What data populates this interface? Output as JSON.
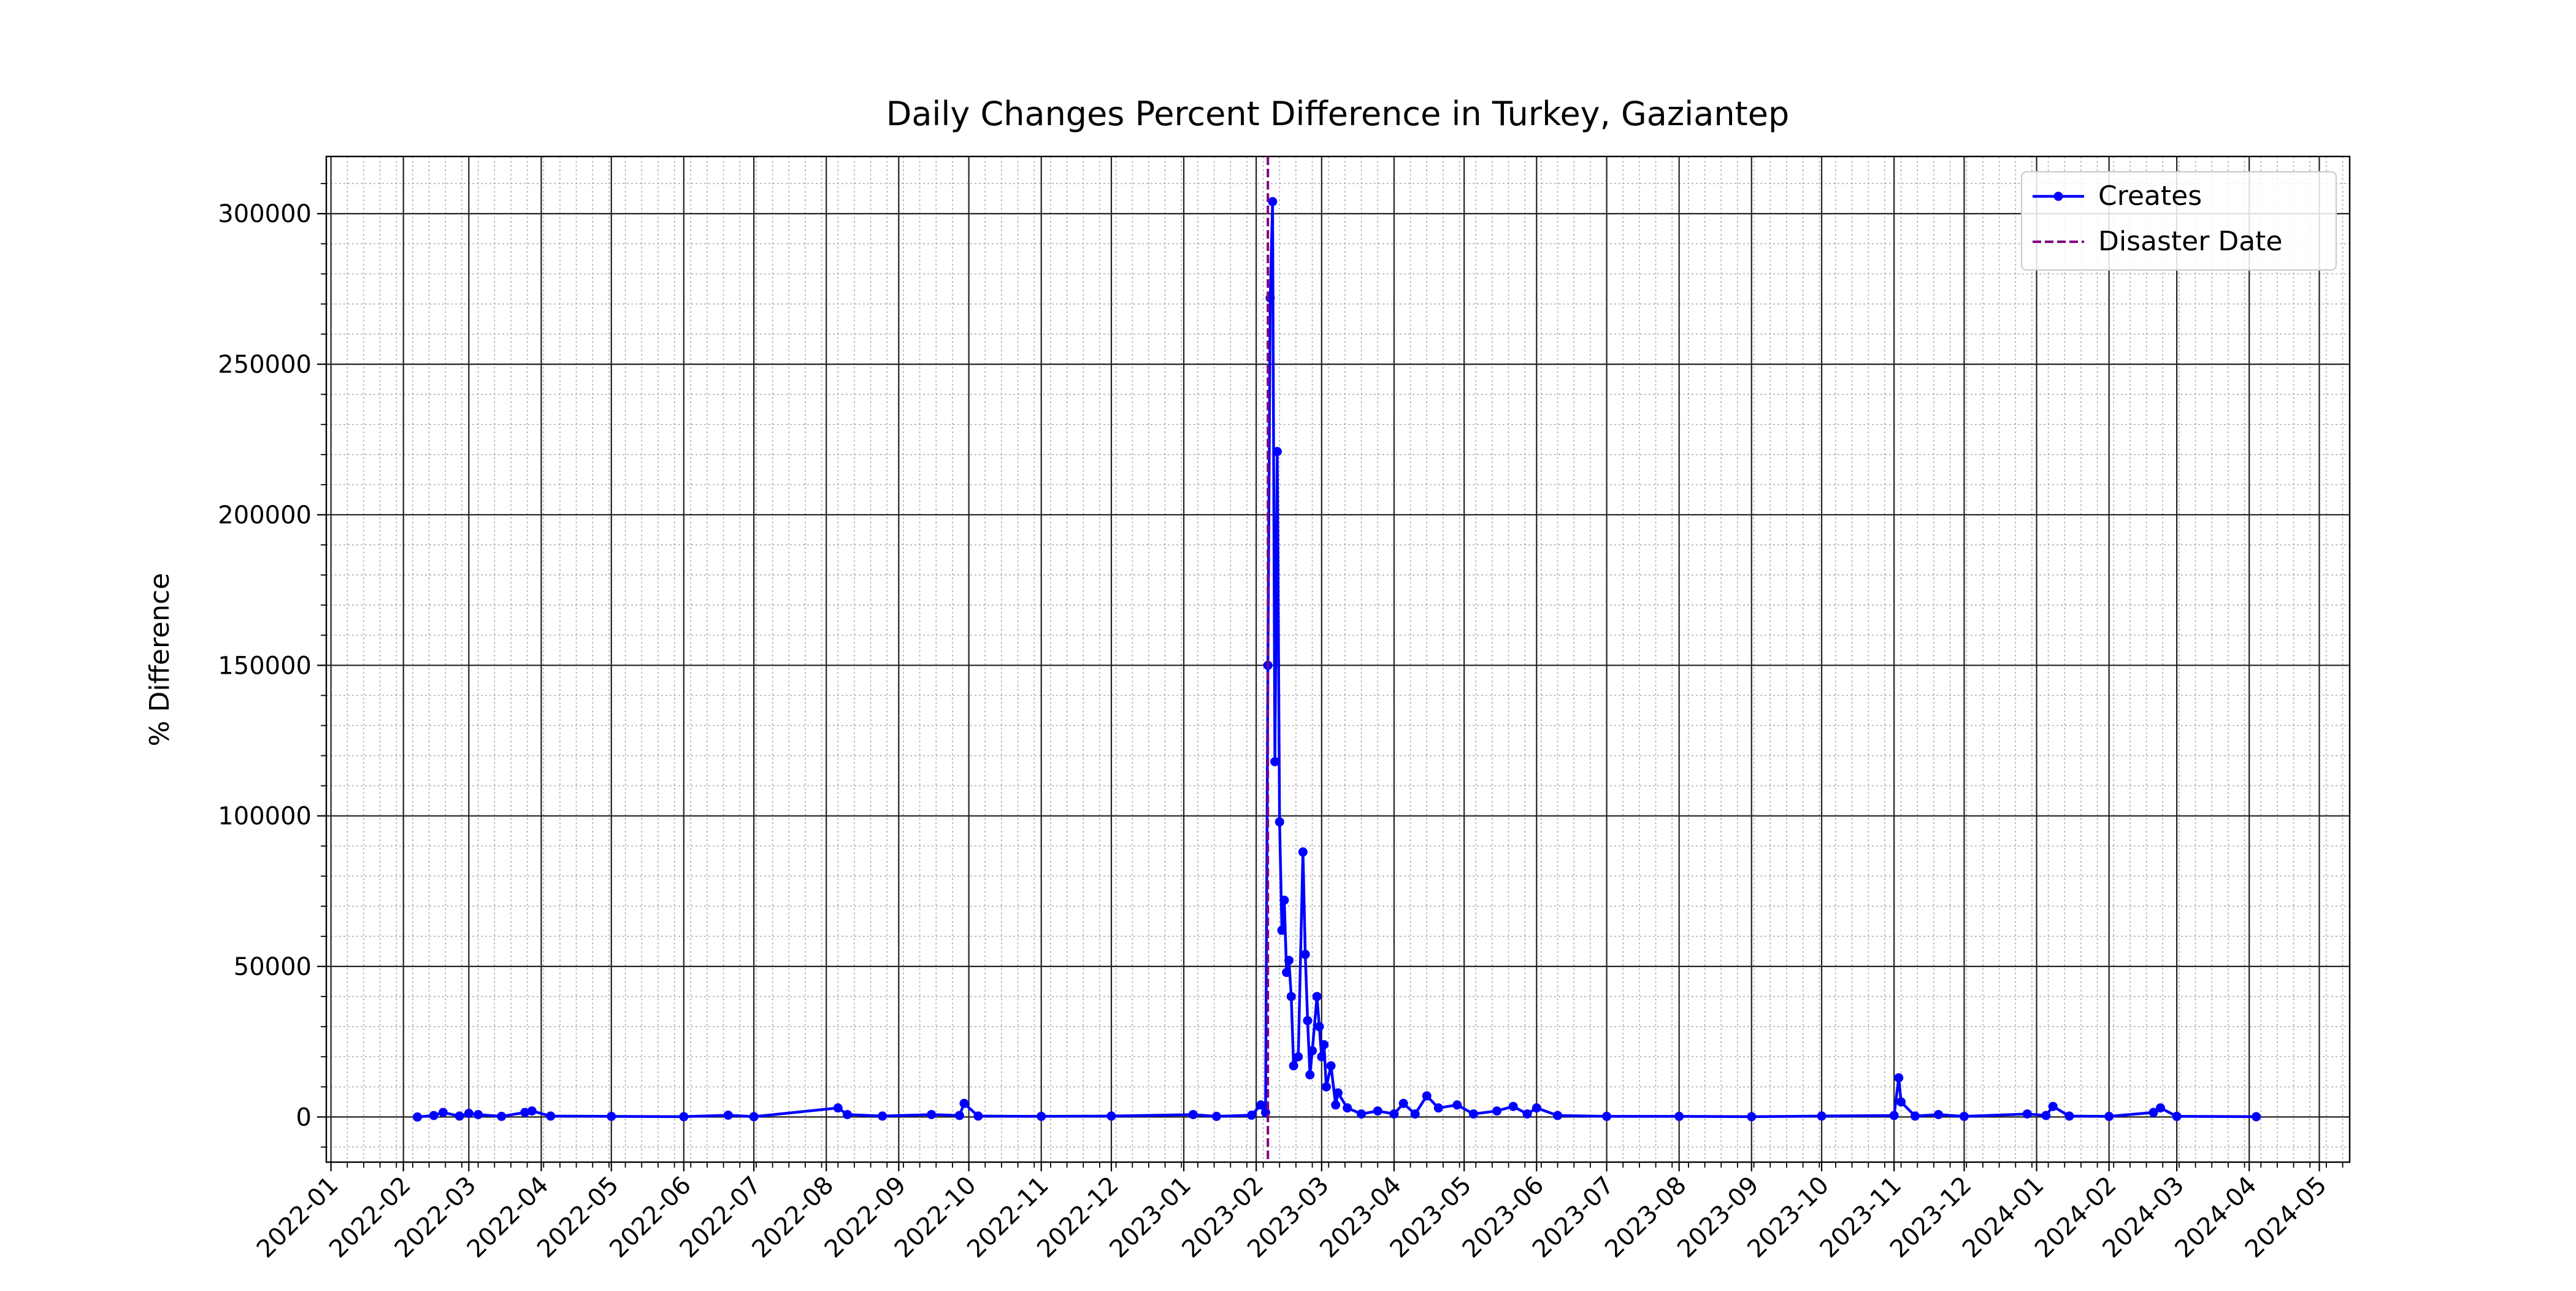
{
  "chart_data": {
    "type": "line",
    "title": "Daily Changes Percent Difference in Turkey, Gaziantep",
    "y_label": "% Difference",
    "x": [
      "2022-02-07",
      "2022-02-14",
      "2022-02-18",
      "2022-02-25",
      "2022-03-01",
      "2022-03-05",
      "2022-03-15",
      "2022-03-25",
      "2022-03-28",
      "2022-04-05",
      "2022-05-01",
      "2022-06-01",
      "2022-06-20",
      "2022-07-01",
      "2022-08-06",
      "2022-08-10",
      "2022-08-25",
      "2022-09-15",
      "2022-09-27",
      "2022-09-29",
      "2022-10-05",
      "2022-11-01",
      "2022-12-01",
      "2023-01-05",
      "2023-01-15",
      "2023-01-30",
      "2023-02-03",
      "2023-02-05",
      "2023-02-06",
      "2023-02-07",
      "2023-02-08",
      "2023-02-09",
      "2023-02-10",
      "2023-02-11",
      "2023-02-12",
      "2023-02-13",
      "2023-02-14",
      "2023-02-15",
      "2023-02-16",
      "2023-02-17",
      "2023-02-19",
      "2023-02-21",
      "2023-02-22",
      "2023-02-23",
      "2023-02-24",
      "2023-02-25",
      "2023-02-27",
      "2023-02-28",
      "2023-03-01",
      "2023-03-02",
      "2023-03-03",
      "2023-03-05",
      "2023-03-07",
      "2023-03-08",
      "2023-03-12",
      "2023-03-18",
      "2023-03-25",
      "2023-04-01",
      "2023-04-05",
      "2023-04-10",
      "2023-04-15",
      "2023-04-20",
      "2023-04-28",
      "2023-05-05",
      "2023-05-15",
      "2023-05-22",
      "2023-05-28",
      "2023-06-01",
      "2023-06-10",
      "2023-07-01",
      "2023-08-01",
      "2023-09-01",
      "2023-10-01",
      "2023-11-01",
      "2023-11-03",
      "2023-11-04",
      "2023-11-10",
      "2023-11-20",
      "2023-12-01",
      "2023-12-28",
      "2024-01-05",
      "2024-01-08",
      "2024-01-15",
      "2024-02-01",
      "2024-02-20",
      "2024-02-23",
      "2024-03-01",
      "2024-04-04"
    ],
    "series": [
      {
        "name": "Creates",
        "color": "#0000ff",
        "values": [
          0,
          500,
          1500,
          300,
          1200,
          800,
          200,
          1500,
          2000,
          300,
          200,
          100,
          600,
          100,
          3000,
          800,
          300,
          800,
          500,
          4500,
          300,
          200,
          300,
          800,
          200,
          600,
          4000,
          1500,
          150000,
          272000,
          304000,
          118000,
          221000,
          98000,
          62000,
          72000,
          48000,
          52000,
          40000,
          17000,
          20000,
          88000,
          54000,
          32000,
          14000,
          22000,
          40000,
          30000,
          20000,
          24000,
          10000,
          17000,
          4000,
          8000,
          3000,
          1000,
          2000,
          1000,
          4500,
          1000,
          7000,
          3000,
          4000,
          1000,
          2000,
          3500,
          1000,
          3000,
          500,
          200,
          200,
          100,
          300,
          500,
          13000,
          5000,
          300,
          800,
          200,
          1000,
          500,
          3500,
          300,
          200,
          1500,
          3000,
          200,
          100
        ]
      }
    ],
    "vlines": [
      {
        "name": "Disaster Date",
        "x": "2023-02-06",
        "color": "#800080"
      }
    ],
    "xlim": [
      "2021-12-30",
      "2024-05-14"
    ],
    "xticks": [
      "2022-01",
      "2022-02",
      "2022-03",
      "2022-04",
      "2022-05",
      "2022-06",
      "2022-07",
      "2022-08",
      "2022-09",
      "2022-10",
      "2022-11",
      "2022-12",
      "2023-01",
      "2023-02",
      "2023-03",
      "2023-04",
      "2023-05",
      "2023-06",
      "2023-07",
      "2023-08",
      "2023-09",
      "2023-10",
      "2023-11",
      "2023-12",
      "2024-01",
      "2024-02",
      "2024-03",
      "2024-04",
      "2024-05"
    ],
    "ylim": [
      -15000,
      319000
    ],
    "yticks": [
      0,
      50000,
      100000,
      150000,
      200000,
      250000,
      300000
    ],
    "grid": true,
    "minor_grid": true,
    "legend": "upper right"
  }
}
